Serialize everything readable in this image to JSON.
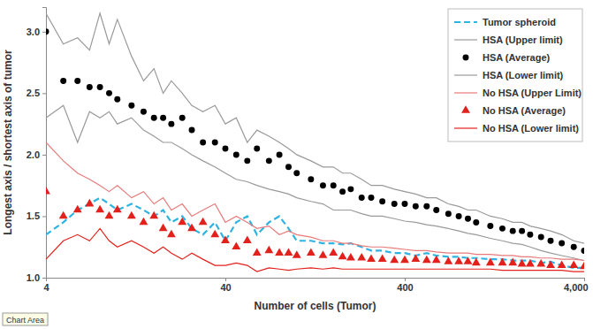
{
  "chart_data": {
    "type": "line",
    "x_label": "Number of cells (Tumor)",
    "y_label": "Longest axis / shortest axis of tumor",
    "annotations": [
      "Chart Area"
    ],
    "log": "x",
    "grid": false,
    "legend": "top-right",
    "xlim": [
      4,
      4000
    ],
    "xticks": [
      4,
      40,
      400,
      {
        "value": 4000,
        "label": "4,000"
      }
    ],
    "ylim": [
      1,
      3.2
    ],
    "yticks": [
      {
        "value": 1,
        "label": "1.0"
      },
      1.5,
      {
        "value": 2,
        "label": "2.0"
      },
      2.5,
      {
        "value": 3,
        "label": "3.0"
      }
    ],
    "x": [
      4,
      5,
      6,
      7,
      8,
      9,
      10,
      12,
      14,
      16,
      18,
      20,
      23,
      26,
      30,
      35,
      40,
      46,
      53,
      60,
      70,
      80,
      90,
      100,
      120,
      140,
      160,
      180,
      200,
      230,
      260,
      300,
      350,
      400,
      460,
      530,
      600,
      700,
      800,
      900,
      1000,
      1200,
      1400,
      1600,
      1800,
      2000,
      2300,
      2600,
      3000,
      3500,
      4000
    ],
    "series": [
      {
        "name": "Tumor spheroid",
        "type": "line",
        "line_style": "dashed",
        "color": "#2fb3e3",
        "values": [
          1.35,
          1.45,
          1.55,
          1.6,
          1.65,
          1.6,
          1.55,
          1.6,
          1.55,
          1.5,
          1.55,
          1.45,
          1.5,
          1.4,
          1.35,
          1.45,
          1.3,
          1.45,
          1.5,
          1.35,
          1.45,
          1.5,
          1.4,
          1.3,
          1.3,
          1.28,
          1.28,
          1.27,
          1.28,
          1.25,
          1.22,
          1.22,
          1.2,
          1.2,
          1.18,
          1.2,
          1.18,
          1.17,
          1.17,
          1.16,
          1.16,
          1.15,
          1.15,
          1.14,
          1.14,
          1.14,
          1.12,
          1.13,
          1.1,
          1.08,
          1.08
        ]
      },
      {
        "name": "HSA (Upper limit)",
        "type": "line",
        "line_style": "solid",
        "color": "#9a9a9a",
        "values": [
          3.15,
          2.9,
          2.95,
          2.85,
          3.15,
          2.9,
          3.1,
          2.8,
          2.6,
          2.7,
          2.5,
          2.6,
          2.5,
          2.4,
          2.35,
          2.4,
          2.25,
          2.3,
          2.1,
          2.2,
          2.15,
          2.1,
          2.05,
          2.0,
          1.95,
          1.9,
          1.9,
          1.85,
          1.85,
          1.8,
          1.75,
          1.75,
          1.72,
          1.7,
          1.68,
          1.65,
          1.65,
          1.6,
          1.58,
          1.55,
          1.55,
          1.5,
          1.48,
          1.45,
          1.45,
          1.42,
          1.4,
          1.38,
          1.35,
          1.3,
          1.28
        ]
      },
      {
        "name": "HSA (Average)",
        "type": "scatter",
        "marker": "circle",
        "color": "#000000",
        "values": [
          3.0,
          2.6,
          2.6,
          2.55,
          2.55,
          2.5,
          2.45,
          2.4,
          2.35,
          2.3,
          2.3,
          2.25,
          2.3,
          2.2,
          2.1,
          2.1,
          2.05,
          2.0,
          1.95,
          2.05,
          1.95,
          2.0,
          1.9,
          1.85,
          1.8,
          1.75,
          1.75,
          1.7,
          1.72,
          1.65,
          1.65,
          1.62,
          1.6,
          1.6,
          1.58,
          1.58,
          1.55,
          1.52,
          1.5,
          1.48,
          1.45,
          1.42,
          1.4,
          1.38,
          1.38,
          1.35,
          1.33,
          1.3,
          1.28,
          1.25,
          1.22
        ]
      },
      {
        "name": "HSA (Lower limit)",
        "type": "line",
        "line_style": "solid",
        "color": "#9a9a9a",
        "values": [
          2.3,
          2.4,
          2.1,
          2.35,
          2.3,
          2.35,
          2.25,
          2.3,
          2.2,
          2.15,
          2.1,
          2.1,
          2.05,
          2.0,
          1.95,
          1.9,
          1.85,
          1.8,
          1.78,
          1.75,
          1.72,
          1.7,
          1.68,
          1.65,
          1.62,
          1.6,
          1.55,
          1.55,
          1.55,
          1.52,
          1.5,
          1.5,
          1.48,
          1.46,
          1.45,
          1.43,
          1.42,
          1.4,
          1.38,
          1.36,
          1.35,
          1.32,
          1.3,
          1.28,
          1.27,
          1.25,
          1.22,
          1.2,
          1.18,
          1.16,
          1.14
        ]
      },
      {
        "name": "No HSA (Upper Limit)",
        "type": "line",
        "line_style": "solid",
        "color": "#e87a7a",
        "values": [
          2.1,
          1.95,
          1.85,
          1.8,
          1.75,
          1.7,
          1.75,
          1.65,
          1.7,
          1.6,
          1.65,
          1.55,
          1.6,
          1.5,
          1.55,
          1.6,
          1.45,
          1.5,
          1.45,
          1.4,
          1.42,
          1.35,
          1.38,
          1.35,
          1.33,
          1.3,
          1.3,
          1.28,
          1.28,
          1.26,
          1.25,
          1.25,
          1.24,
          1.23,
          1.22,
          1.22,
          1.21,
          1.2,
          1.2,
          1.2,
          1.19,
          1.19,
          1.18,
          1.18,
          1.17,
          1.17,
          1.16,
          1.16,
          1.15,
          1.15,
          1.14
        ]
      },
      {
        "name": "No HSA (Average)",
        "type": "scatter",
        "marker": "triangle",
        "color": "#e3211c",
        "values": [
          1.7,
          1.5,
          1.55,
          1.6,
          1.55,
          1.5,
          1.55,
          1.5,
          1.45,
          1.5,
          1.4,
          1.35,
          1.45,
          1.4,
          1.45,
          1.35,
          1.3,
          1.25,
          1.3,
          1.2,
          1.22,
          1.2,
          1.2,
          1.18,
          1.2,
          1.18,
          1.2,
          1.17,
          1.16,
          1.16,
          1.15,
          1.15,
          1.14,
          1.14,
          1.15,
          1.14,
          1.14,
          1.13,
          1.13,
          1.13,
          1.12,
          1.12,
          1.12,
          1.12,
          1.11,
          1.11,
          1.11,
          1.1,
          1.1,
          1.1,
          1.09
        ]
      },
      {
        "name": "No HSA (Lower limit)",
        "type": "line",
        "line_style": "solid",
        "color": "#e3211c",
        "values": [
          1.15,
          1.3,
          1.35,
          1.3,
          1.4,
          1.3,
          1.25,
          1.3,
          1.25,
          1.2,
          1.25,
          1.2,
          1.15,
          1.2,
          1.15,
          1.1,
          1.1,
          1.12,
          1.1,
          1.05,
          1.08,
          1.07,
          1.06,
          1.07,
          1.08,
          1.07,
          1.08,
          1.07,
          1.07,
          1.07,
          1.07,
          1.07,
          1.07,
          1.07,
          1.07,
          1.07,
          1.07,
          1.07,
          1.07,
          1.07,
          1.07,
          1.07,
          1.06,
          1.06,
          1.06,
          1.06,
          1.06,
          1.06,
          1.06,
          1.05,
          1.05
        ]
      }
    ]
  }
}
